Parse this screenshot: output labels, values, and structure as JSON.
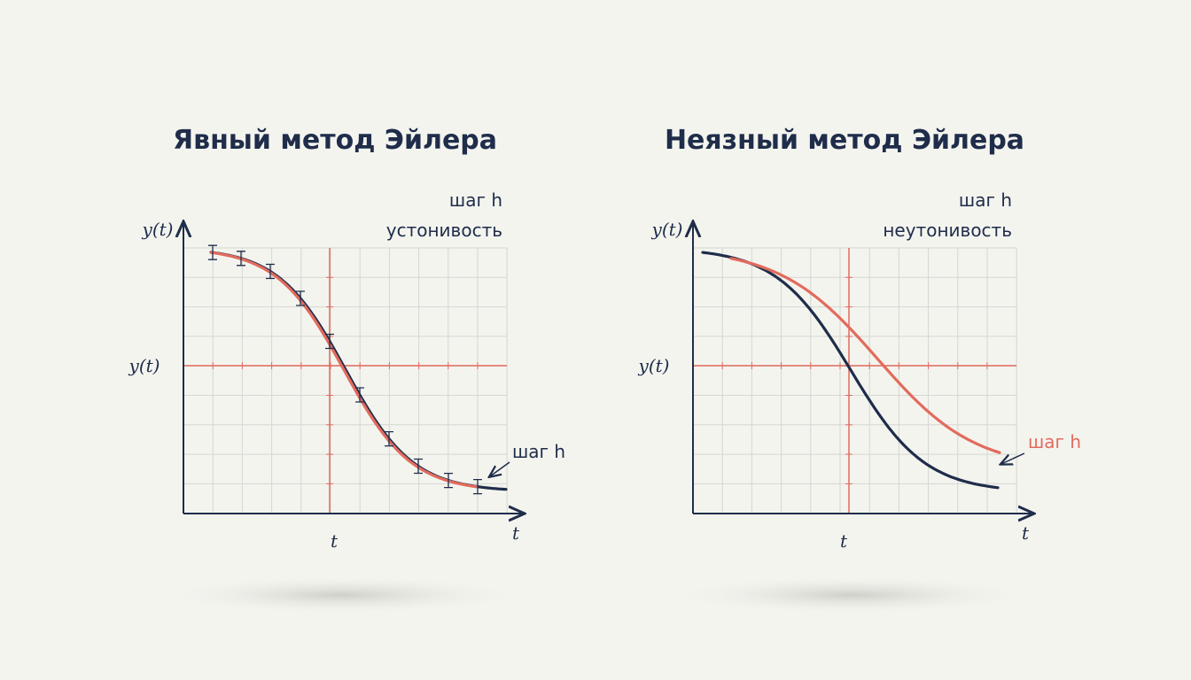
{
  "panels": [
    {
      "title": "Явный метод Эйлера",
      "step_top": "шаг h",
      "stability": "устонивость",
      "y_axis_top": "y(t)",
      "y_axis_mid": "y(t)",
      "t_center": "t",
      "t_axis": "t",
      "step_annotation": "шаг h"
    },
    {
      "title": "Неязный метод Эйлера",
      "step_top": "шаг h",
      "stability": "неутонивость",
      "y_axis_top": "y(t)",
      "y_axis_mid": "y(t)",
      "t_center": "t",
      "t_axis": "t",
      "step_annotation": "шаг h"
    }
  ]
}
